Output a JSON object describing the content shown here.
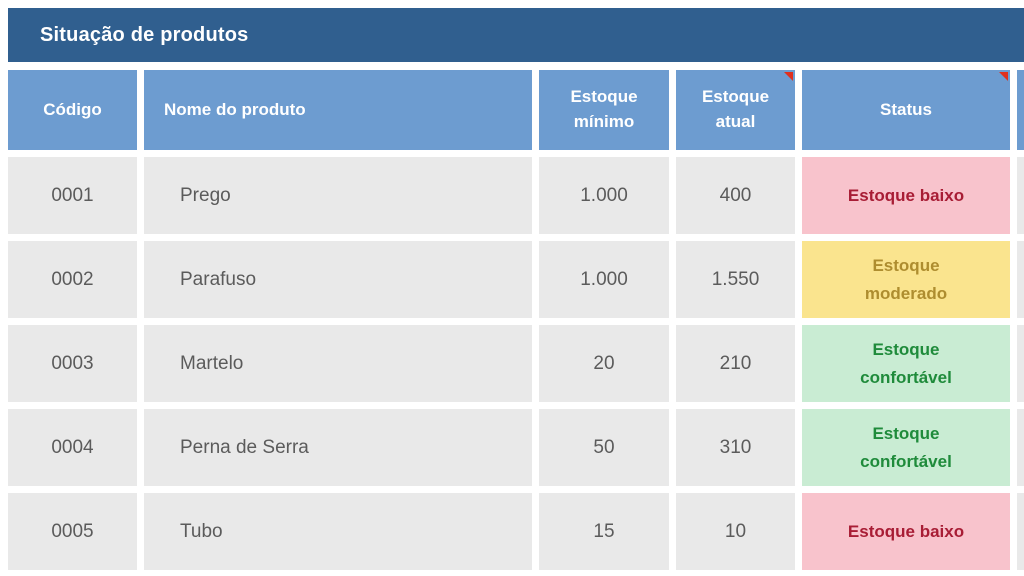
{
  "title": "Situação de produtos",
  "columns": {
    "codigo": "Código",
    "nome": "Nome do produto",
    "minimo": "Estoque\nmínimo",
    "atual": "Estoque\natual",
    "status": "Status"
  },
  "rows": [
    {
      "codigo": "0001",
      "nome": "Prego",
      "minimo": "1.000",
      "atual": "400",
      "status": "Estoque baixo",
      "status_type": "low"
    },
    {
      "codigo": "0002",
      "nome": "Parafuso",
      "minimo": "1.000",
      "atual": "1.550",
      "status": "Estoque\nmoderado",
      "status_type": "moderate"
    },
    {
      "codigo": "0003",
      "nome": "Martelo",
      "minimo": "20",
      "atual": "210",
      "status": "Estoque\nconfortável",
      "status_type": "comfortable"
    },
    {
      "codigo": "0004",
      "nome": "Perna de Serra",
      "minimo": "50",
      "atual": "310",
      "status": "Estoque\nconfortável",
      "status_type": "comfortable"
    },
    {
      "codigo": "0005",
      "nome": "Tubo",
      "minimo": "15",
      "atual": "10",
      "status": "Estoque baixo",
      "status_type": "low"
    }
  ],
  "colors": {
    "title_bar": "#305F8F",
    "header_bg": "#6D9CD0",
    "row_bg": "#E9E9E9",
    "data_text": "#5B5B5B",
    "status_low_bg": "#F8C3CC",
    "status_low_text": "#A81D35",
    "status_moderate_bg": "#FAE48E",
    "status_moderate_text": "#AE8D2F",
    "status_comfortable_bg": "#C9ECD3",
    "status_comfortable_text": "#1F8B3B",
    "comment_marker": "#E0301E"
  }
}
